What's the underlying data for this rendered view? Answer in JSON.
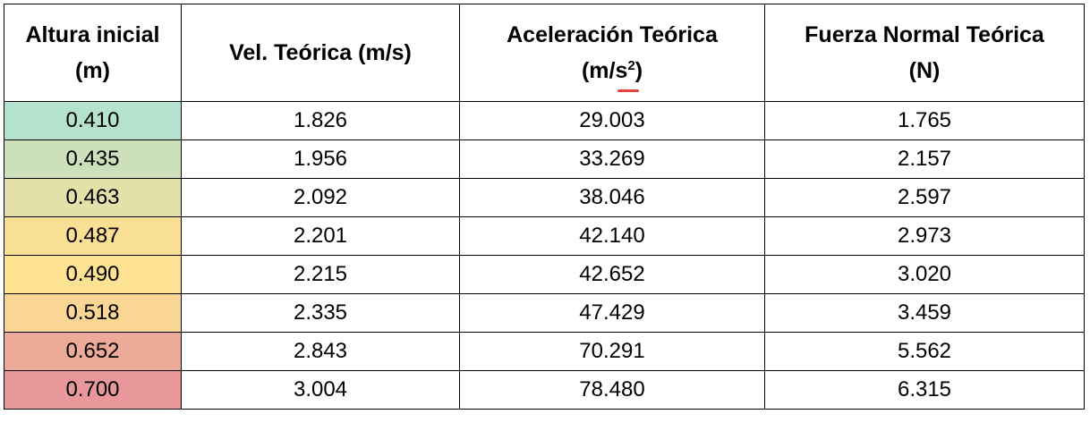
{
  "headers": {
    "h1_line1": "Altura inicial",
    "h1_line2": "(m)",
    "h2": "Vel. Teórica (m/s)",
    "h3_line1": "Aceleración Teórica",
    "h3_unit_base": "(m/s",
    "h3_unit_sup": "2",
    "h3_unit_close": ")",
    "h4_line1": "Fuerza Normal Teórica",
    "h4_line2": "(N)"
  },
  "rows": [
    {
      "altura": "0.410",
      "vel": "1.826",
      "acel": "29.003",
      "fuerza": "1.765",
      "color": "#b5e1cf"
    },
    {
      "altura": "0.435",
      "vel": "1.956",
      "acel": "33.269",
      "fuerza": "2.157",
      "color": "#cce1bb"
    },
    {
      "altura": "0.463",
      "vel": "2.092",
      "acel": "38.046",
      "fuerza": "2.597",
      "color": "#e4e0aa"
    },
    {
      "altura": "0.487",
      "vel": "2.201",
      "acel": "42.140",
      "fuerza": "2.973",
      "color": "#f9df94"
    },
    {
      "altura": "0.490",
      "vel": "2.215",
      "acel": "42.652",
      "fuerza": "3.020",
      "color": "#fde293"
    },
    {
      "altura": "0.518",
      "vel": "2.335",
      "acel": "47.429",
      "fuerza": "3.459",
      "color": "#f9d693"
    },
    {
      "altura": "0.652",
      "vel": "2.843",
      "acel": "70.291",
      "fuerza": "5.562",
      "color": "#eeaa99"
    },
    {
      "altura": "0.700",
      "vel": "3.004",
      "acel": "78.480",
      "fuerza": "6.315",
      "color": "#e8979a"
    }
  ]
}
